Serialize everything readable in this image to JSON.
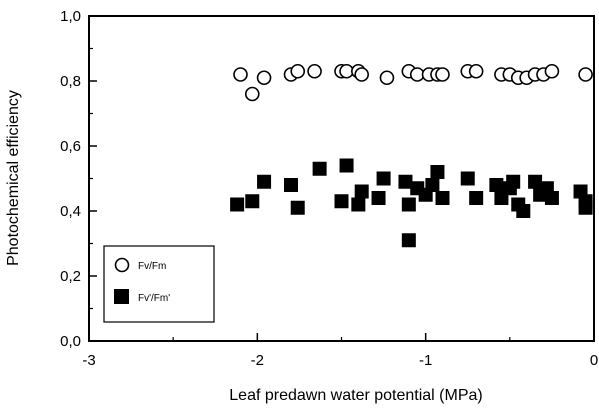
{
  "chart_data": {
    "type": "scatter",
    "xlabel": "Leaf predawn water potential (MPa)",
    "ylabel": "Photochemical efficiency",
    "xlim": [
      -3,
      0
    ],
    "ylim": [
      0,
      1
    ],
    "x_ticks": [
      -3,
      -2,
      -1,
      0
    ],
    "x_tick_labels": [
      "-3",
      "-2",
      "-1",
      "0"
    ],
    "y_ticks": [
      0,
      0.2,
      0.4,
      0.6,
      0.8,
      1.0
    ],
    "y_tick_labels": [
      "0,0",
      "0,2",
      "0,4",
      "0,6",
      "0,8",
      "1,0"
    ],
    "grid": false,
    "legend_position": "bottom-left",
    "series": [
      {
        "name": "Fv/Fm",
        "marker": "open-circle",
        "color": "#000000",
        "points": [
          {
            "x": -2.1,
            "y": 0.82
          },
          {
            "x": -2.03,
            "y": 0.76
          },
          {
            "x": -1.96,
            "y": 0.81
          },
          {
            "x": -1.8,
            "y": 0.82
          },
          {
            "x": -1.76,
            "y": 0.83
          },
          {
            "x": -1.66,
            "y": 0.83
          },
          {
            "x": -1.5,
            "y": 0.83
          },
          {
            "x": -1.47,
            "y": 0.83
          },
          {
            "x": -1.4,
            "y": 0.83
          },
          {
            "x": -1.38,
            "y": 0.82
          },
          {
            "x": -1.23,
            "y": 0.81
          },
          {
            "x": -1.1,
            "y": 0.83
          },
          {
            "x": -1.05,
            "y": 0.82
          },
          {
            "x": -0.98,
            "y": 0.82
          },
          {
            "x": -0.93,
            "y": 0.82
          },
          {
            "x": -0.9,
            "y": 0.82
          },
          {
            "x": -0.75,
            "y": 0.83
          },
          {
            "x": -0.7,
            "y": 0.83
          },
          {
            "x": -0.55,
            "y": 0.82
          },
          {
            "x": -0.5,
            "y": 0.82
          },
          {
            "x": -0.45,
            "y": 0.81
          },
          {
            "x": -0.4,
            "y": 0.81
          },
          {
            "x": -0.35,
            "y": 0.82
          },
          {
            "x": -0.3,
            "y": 0.82
          },
          {
            "x": -0.25,
            "y": 0.83
          },
          {
            "x": -0.05,
            "y": 0.82
          }
        ]
      },
      {
        "name": "Fv'/Fm'",
        "marker": "filled-square",
        "color": "#000000",
        "points": [
          {
            "x": -2.12,
            "y": 0.42
          },
          {
            "x": -2.03,
            "y": 0.43
          },
          {
            "x": -1.96,
            "y": 0.49
          },
          {
            "x": -1.8,
            "y": 0.48
          },
          {
            "x": -1.76,
            "y": 0.41
          },
          {
            "x": -1.63,
            "y": 0.53
          },
          {
            "x": -1.5,
            "y": 0.43
          },
          {
            "x": -1.47,
            "y": 0.54
          },
          {
            "x": -1.4,
            "y": 0.42
          },
          {
            "x": -1.38,
            "y": 0.46
          },
          {
            "x": -1.28,
            "y": 0.44
          },
          {
            "x": -1.25,
            "y": 0.5
          },
          {
            "x": -1.12,
            "y": 0.49
          },
          {
            "x": -1.1,
            "y": 0.42
          },
          {
            "x": -1.1,
            "y": 0.31
          },
          {
            "x": -1.05,
            "y": 0.47
          },
          {
            "x": -1.0,
            "y": 0.45
          },
          {
            "x": -0.96,
            "y": 0.48
          },
          {
            "x": -0.93,
            "y": 0.52
          },
          {
            "x": -0.9,
            "y": 0.44
          },
          {
            "x": -0.75,
            "y": 0.5
          },
          {
            "x": -0.7,
            "y": 0.44
          },
          {
            "x": -0.58,
            "y": 0.48
          },
          {
            "x": -0.55,
            "y": 0.44
          },
          {
            "x": -0.5,
            "y": 0.47
          },
          {
            "x": -0.48,
            "y": 0.49
          },
          {
            "x": -0.45,
            "y": 0.42
          },
          {
            "x": -0.42,
            "y": 0.4
          },
          {
            "x": -0.35,
            "y": 0.49
          },
          {
            "x": -0.32,
            "y": 0.45
          },
          {
            "x": -0.28,
            "y": 0.47
          },
          {
            "x": -0.25,
            "y": 0.44
          },
          {
            "x": -0.08,
            "y": 0.46
          },
          {
            "x": -0.05,
            "y": 0.43
          },
          {
            "x": -0.05,
            "y": 0.41
          }
        ]
      }
    ]
  }
}
